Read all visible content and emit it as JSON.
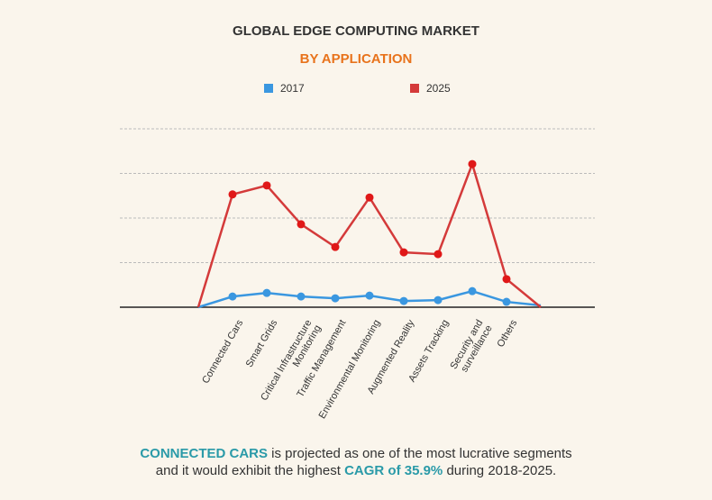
{
  "chart_data": {
    "type": "line",
    "title": "GLOBAL EDGE COMPUTING MARKET",
    "subtitle": "BY APPLICATION",
    "categories": [
      null,
      "Connected Cars",
      "Smart Grids",
      "Critical Infrastructure\nMonitoring",
      "Traffic Management",
      "Environmental Monitoring",
      "Augmented Reality",
      "Assets Tracking",
      "Security and\nsurveillance",
      "Others",
      null
    ],
    "series": [
      {
        "name": "2017",
        "color": "#3a97e0",
        "values": [
          0,
          0.24,
          0.32,
          0.24,
          0.2,
          0.26,
          0.14,
          0.16,
          0.36,
          0.12,
          0.04
        ]
      },
      {
        "name": "2025",
        "color": "#d43a3a",
        "values": [
          0,
          2.53,
          2.73,
          1.86,
          1.35,
          2.46,
          1.23,
          1.19,
          3.21,
          0.63,
          0
        ]
      }
    ],
    "ylim": [
      0,
      4
    ],
    "yticks": [
      1,
      2,
      3,
      4
    ],
    "grid": true,
    "annotation": [
      "CONNECTED CARS",
      " is projected as one of the most lucrative segments\nand it would exhibit the highest ",
      "CAGR of 35.9%",
      " during 2018-2025."
    ]
  }
}
